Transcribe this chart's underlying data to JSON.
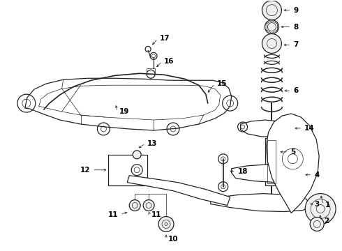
{
  "bg_color": "#ffffff",
  "line_color": "#222222",
  "label_color": "#000000",
  "figsize": [
    4.9,
    3.6
  ],
  "dpi": 100,
  "font_size": 7.5,
  "lw_main": 0.9,
  "lw_thin": 0.5
}
